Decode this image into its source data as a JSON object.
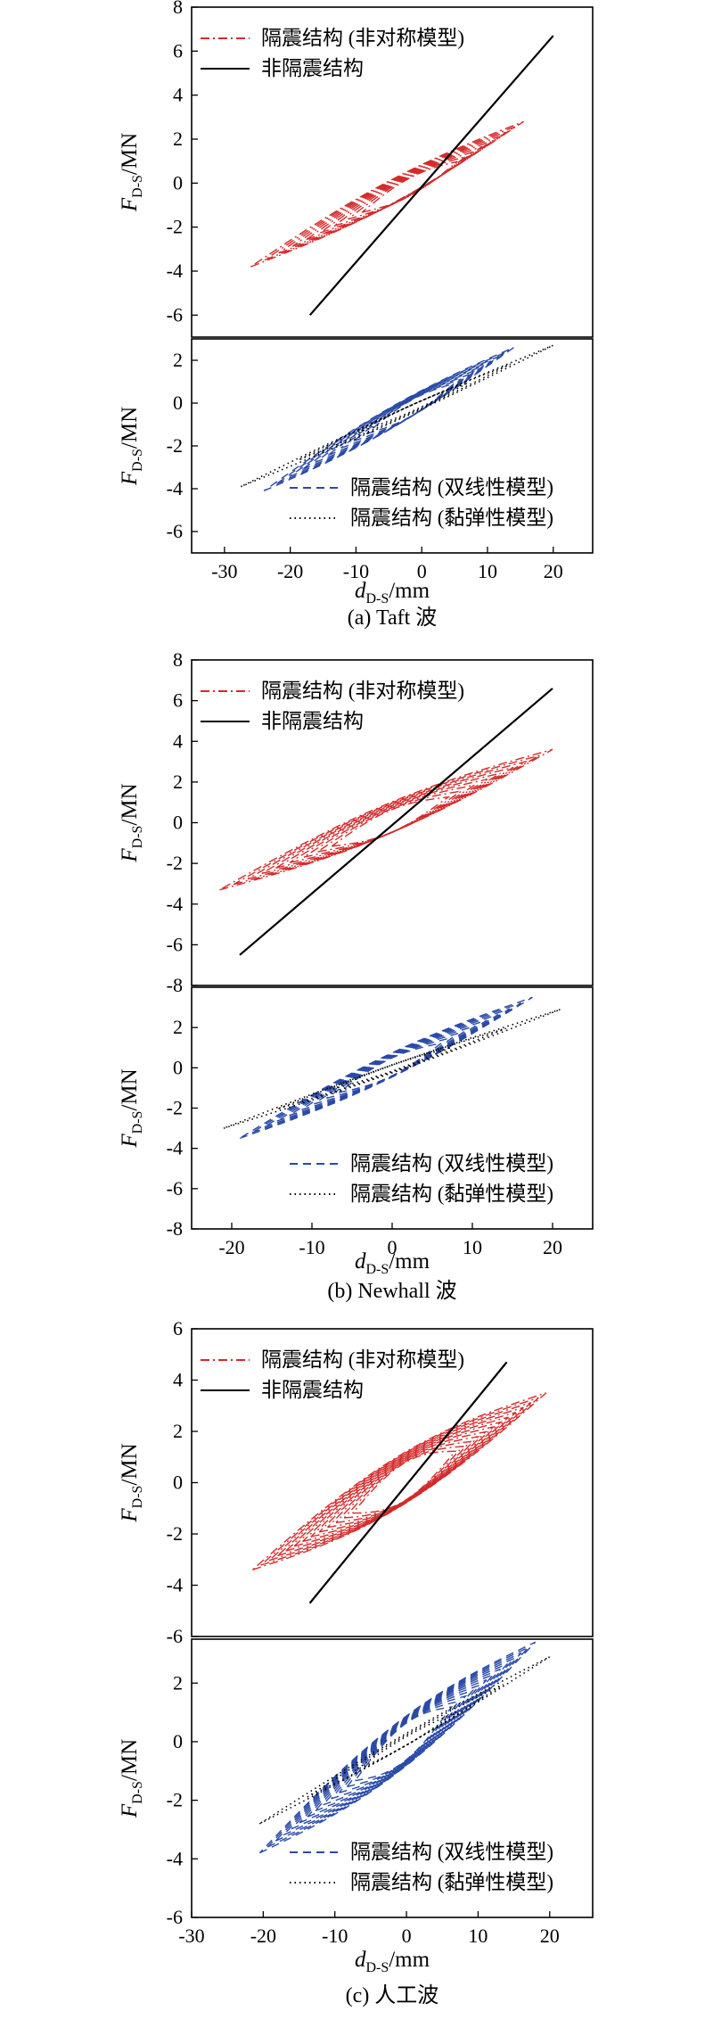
{
  "colors": {
    "isolated_asym": "#d42a2a",
    "non_isolated": "#000000",
    "bilinear": "#2a4aa8",
    "viscoelastic": "#000000",
    "axis": "#000000"
  },
  "chart_data": [
    {
      "type": "line",
      "group": "a",
      "caption": "(a) Taft 波",
      "ylabel": "F_D-S/MN",
      "ylabel_main": "F",
      "ylabel_sub": "D-S",
      "ylabel_unit": "/MN",
      "xlabel": "d_D-S/mm",
      "xlabel_main": "d",
      "xlabel_sub": "D-S",
      "xlabel_unit": "/mm",
      "xlim": [
        -35,
        26
      ],
      "xticks": [
        -30,
        -20,
        -10,
        0,
        10,
        20
      ],
      "panels": [
        {
          "ylim": [
            -7,
            8
          ],
          "yticks": [
            -6,
            -4,
            -2,
            0,
            2,
            4,
            6,
            8
          ],
          "legend_position": "top-left",
          "series": [
            {
              "name": "隔震结构 (非对称模型)",
              "style": "dashdot",
              "color": "#d42a2a",
              "kind": "loop",
              "d0": -26,
              "d1": 15.5,
              "f0": -3.8,
              "f1": 2.8,
              "width": 0.55,
              "count": 9,
              "legend": true
            },
            {
              "name": "非隔震结构",
              "style": "solid",
              "color": "#000000",
              "kind": "line",
              "points": [
                [
                  -17,
                  -6
                ],
                [
                  20,
                  6.7
                ]
              ],
              "legend": true
            }
          ]
        },
        {
          "ylim": [
            -7,
            3
          ],
          "yticks": [
            -6,
            -4,
            -2,
            0,
            2
          ],
          "legend_position": "bottom-right",
          "series": [
            {
              "name": "隔震结构 (双线性模型)",
              "style": "dashed",
              "color": "#2a4aa8",
              "kind": "loop",
              "d0": -24,
              "d1": 14,
              "f0": -4.1,
              "f1": 2.6,
              "width": 0.5,
              "count": 9,
              "legend": true
            },
            {
              "name": "隔震结构 (黏弹性模型)",
              "style": "dotted",
              "color": "#000000",
              "kind": "loop",
              "d0": -27.5,
              "d1": 20,
              "f0": -3.9,
              "f1": 2.7,
              "width": 0.2,
              "count": 3,
              "legend": true
            }
          ]
        }
      ]
    },
    {
      "type": "line",
      "group": "b",
      "caption": "(b) Newhall 波",
      "ylabel": "F_D-S/MN",
      "ylabel_main": "F",
      "ylabel_sub": "D-S",
      "ylabel_unit": "/MN",
      "xlabel": "d_D-S/mm",
      "xlabel_main": "d",
      "xlabel_sub": "D-S",
      "xlabel_unit": "/mm",
      "xlim": [
        -25,
        25
      ],
      "xticks": [
        -20,
        -10,
        0,
        10,
        20
      ],
      "panels": [
        {
          "ylim": [
            -8,
            8
          ],
          "yticks": [
            -8,
            -6,
            -4,
            -2,
            0,
            2,
            4,
            6,
            8
          ],
          "legend_position": "top-left",
          "series": [
            {
              "name": "隔震结构 (非对称模型)",
              "style": "dashdot",
              "color": "#d42a2a",
              "kind": "loop",
              "d0": -21.5,
              "d1": 20,
              "f0": -3.3,
              "f1": 3.6,
              "width": 0.75,
              "count": 9,
              "legend": true
            },
            {
              "name": "非隔震结构",
              "style": "solid",
              "color": "#000000",
              "kind": "line",
              "points": [
                [
                  -19,
                  -6.5
                ],
                [
                  20,
                  6.6
                ]
              ],
              "legend": true
            }
          ]
        },
        {
          "ylim": [
            -8,
            4
          ],
          "yticks": [
            -8,
            -6,
            -4,
            -2,
            0,
            2
          ],
          "legend_position": "bottom-right",
          "series": [
            {
              "name": "隔震结构 (双线性模型)",
              "style": "dashed",
              "color": "#2a4aa8",
              "kind": "loop",
              "d0": -19,
              "d1": 17.5,
              "f0": -3.5,
              "f1": 3.5,
              "width": 0.6,
              "count": 9,
              "legend": true
            },
            {
              "name": "隔震结构 (黏弹性模型)",
              "style": "dotted",
              "color": "#000000",
              "kind": "loop",
              "d0": -21,
              "d1": 21,
              "f0": -3.0,
              "f1": 2.9,
              "width": 0.2,
              "count": 3,
              "legend": true
            }
          ]
        }
      ]
    },
    {
      "type": "line",
      "group": "c",
      "caption": "(c) 人工波",
      "ylabel": "F_D-S/MN",
      "ylabel_main": "F",
      "ylabel_sub": "D-S",
      "ylabel_unit": "/MN",
      "xlabel": "d_D-S/mm",
      "xlabel_main": "d",
      "xlabel_sub": "D-S",
      "xlabel_unit": "/mm",
      "xlim": [
        -30,
        26
      ],
      "xticks": [
        -30,
        -20,
        -10,
        0,
        10,
        20
      ],
      "panels": [
        {
          "ylim": [
            -6,
            6
          ],
          "yticks": [
            -6,
            -4,
            -2,
            0,
            2,
            4,
            6
          ],
          "legend_position": "top-left",
          "series": [
            {
              "name": "隔震结构 (非对称模型)",
              "style": "dashdot",
              "color": "#d42a2a",
              "kind": "loop",
              "d0": -21.5,
              "d1": 19.5,
              "f0": -3.4,
              "f1": 3.5,
              "width": 1.0,
              "count": 13,
              "legend": true
            },
            {
              "name": "非隔震结构",
              "style": "solid",
              "color": "#000000",
              "kind": "line",
              "points": [
                [
                  -13.5,
                  -4.7
                ],
                [
                  14,
                  4.7
                ]
              ],
              "legend": true
            }
          ]
        },
        {
          "ylim": [
            -6,
            3.5
          ],
          "yticks": [
            -6,
            -4,
            -2,
            0,
            2
          ],
          "legend_position": "bottom-right",
          "series": [
            {
              "name": "隔震结构 (双线性模型)",
              "style": "dashed",
              "color": "#2a4aa8",
              "kind": "loop",
              "d0": -20.5,
              "d1": 18,
              "f0": -3.8,
              "f1": 3.4,
              "width": 0.85,
              "count": 13,
              "legend": true
            },
            {
              "name": "隔震结构 (黏弹性模型)",
              "style": "dotted",
              "color": "#000000",
              "kind": "loop",
              "d0": -20.5,
              "d1": 20,
              "f0": -2.8,
              "f1": 2.9,
              "width": 0.2,
              "count": 3,
              "legend": true
            }
          ]
        }
      ]
    }
  ]
}
